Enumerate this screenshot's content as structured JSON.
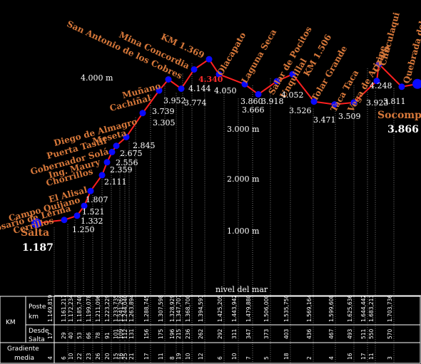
{
  "chart_data": {
    "type": "line",
    "series": [
      {
        "values": [
          1187,
          1250,
          1332,
          1521,
          1807,
          2111,
          2359,
          2556,
          2675,
          2845,
          3305,
          3739,
          3952,
          3774,
          4144,
          4340,
          4050,
          3860,
          3666,
          3918,
          4052,
          3526,
          3471,
          3509,
          3923,
          4248,
          3811,
          3866
        ]
      }
    ],
    "stations": [
      "Salta",
      "Cerrillos",
      "Rosario de Lerma",
      "Campo Quijano",
      "El Alisal",
      "Chorrillos",
      "Ing. Maury",
      "Gobernador Solá",
      "Puerta Tastil",
      "Meseta",
      "Diego de Almagro",
      "Cachiñal",
      "Muñano",
      "San Antonio de los Cobres",
      "Mina Concordia",
      "KM 1.369",
      "Olacapato",
      "Laguna Seca",
      "Salar de Pocitos",
      "Unquillal",
      "KM 1.506",
      "Tolar Grande",
      "Taca Taca",
      "Vega de Arizaro",
      "Caipe",
      "Chuculaqui",
      "Quebrada del Agua",
      "Socomp"
    ],
    "altitude_labels": [
      "1.187",
      "1.250",
      "1.332",
      "1.521",
      "1.807",
      "2.111",
      "2.359",
      "2.556",
      "2.675",
      "2.845",
      "3.305",
      "3.739",
      "3.952",
      "3.774",
      "4.144",
      "4.340",
      "4.050",
      "3.860",
      "3.666",
      "3.918",
      "4.052",
      "3.526",
      "3.471",
      "3.509",
      "3.923",
      "4.248",
      "3.811",
      "3.866"
    ],
    "reference_lines": [
      "1.000 m",
      "2.000 m",
      "3.000 m",
      "4.000 m"
    ],
    "reference_values": [
      1000,
      2000,
      3000,
      4000
    ],
    "baseline_label": "nivel del mar",
    "ylim": [
      0,
      4400
    ],
    "line_color": "#ff2020",
    "marker_color": "#0a0aff",
    "label_color": "#d7783a",
    "table": {
      "group_label": "KM",
      "row1_label": "Poste km",
      "row2_label": "Desde Salta",
      "row3_label": "Gradiente media",
      "columns": [
        {
          "poste": "1.149,819",
          "desde": "17",
          "grad": "4"
        },
        {
          "poste": "1.161,217",
          "desde": "29",
          "grad": "6"
        },
        {
          "poste": "1.172,234",
          "desde": "40",
          "grad": "10"
        },
        {
          "poste": "1.185,740",
          "desde": "53",
          "grad": "22"
        },
        {
          "poste": "1.199,078",
          "desde": "66",
          "grad": "23"
        },
        {
          "poste": "1.211,096",
          "desde": "78",
          "grad": "26"
        },
        {
          "poste": "1.223,229",
          "desde": "91",
          "grad": "20"
        },
        {
          "poste": "1.233,735",
          "desde": "101",
          "grad": "15"
        },
        {
          "poste": "1.241,269",
          "desde": "109",
          "grad": "16"
        },
        {
          "poste": "1.244,040",
          "desde": "112",
          "grad": "25"
        },
        {
          "poste": "1.263,894",
          "desde": "131",
          "grad": "21"
        },
        {
          "poste": "1.288,745",
          "desde": "156",
          "grad": "17"
        },
        {
          "poste": "1.307,598",
          "desde": "175",
          "grad": "11"
        },
        {
          "poste": "1.328,929",
          "desde": "196",
          "grad": "8"
        },
        {
          "poste": "1.347,707",
          "desde": "215",
          "grad": "19"
        },
        {
          "poste": "1.368,700",
          "desde": "236",
          "grad": "10"
        },
        {
          "poste": "1.394,591",
          "desde": "262",
          "grad": "12"
        },
        {
          "poste": "1.425,205",
          "desde": "292",
          "grad": "6"
        },
        {
          "poste": "1.443,942",
          "desde": "311",
          "grad": "10"
        },
        {
          "poste": "1.479,880",
          "desde": "347",
          "grad": "7"
        },
        {
          "poste": "1.506,000",
          "desde": "373",
          "grad": "5"
        },
        {
          "poste": "1.535,750",
          "desde": "403",
          "grad": "18"
        },
        {
          "poste": "1.569,164",
          "desde": "436",
          "grad": "2"
        },
        {
          "poste": "1.599,608",
          "desde": "467",
          "grad": "4"
        },
        {
          "poste": "1.625,636",
          "desde": "493",
          "grad": "16"
        },
        {
          "poste": "1.644,442",
          "desde": "511",
          "grad": "17"
        },
        {
          "poste": "1.683,213",
          "desde": "550",
          "grad": "11"
        },
        {
          "poste": "1.703,736",
          "desde": "570",
          "grad": "3"
        }
      ]
    }
  }
}
